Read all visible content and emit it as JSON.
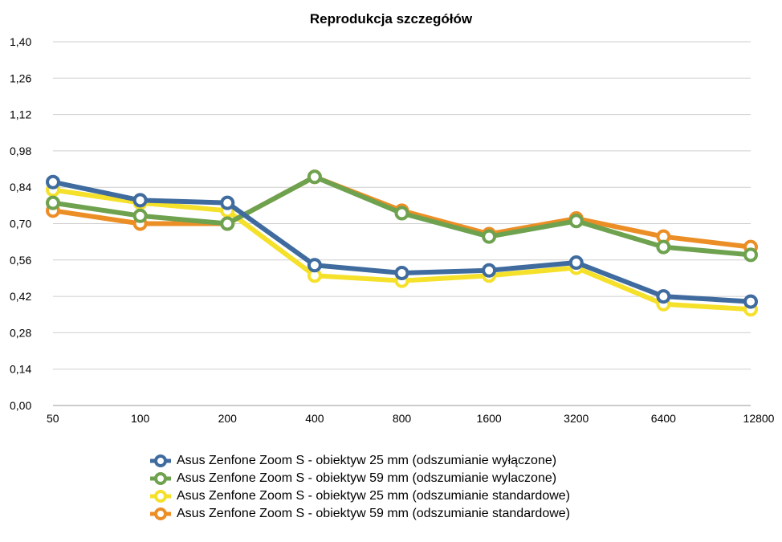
{
  "chart_data": {
    "type": "line",
    "title": "Reprodukcja szczegółów",
    "xlabel": "",
    "ylabel": "",
    "categories": [
      "50",
      "100",
      "200",
      "400",
      "800",
      "1600",
      "3200",
      "6400",
      "12800"
    ],
    "y_ticks": [
      "0,00",
      "0,14",
      "0,28",
      "0,42",
      "0,56",
      "0,70",
      "0,84",
      "0,98",
      "1,12",
      "1,26",
      "1,40"
    ],
    "ylim": [
      0,
      1.4
    ],
    "grid": true,
    "legend_position": "bottom",
    "series": [
      {
        "name": "Asus Zenfone Zoom S - obiektyw 25 mm (odszumianie wyłączone)",
        "color": "#3f6b9e",
        "values": [
          0.86,
          0.79,
          0.78,
          0.54,
          0.51,
          0.52,
          0.55,
          0.42,
          0.4
        ]
      },
      {
        "name": "Asus Zenfone Zoom S - obiektyw 59 mm (odszumianie wylaczone)",
        "color": "#6ea24f",
        "values": [
          0.78,
          0.73,
          0.7,
          0.88,
          0.74,
          0.65,
          0.71,
          0.61,
          0.58
        ]
      },
      {
        "name": "Asus Zenfone Zoom S - obiektyw 25 mm (odszumianie standardowe)",
        "color": "#f5e02a",
        "values": [
          0.83,
          0.78,
          0.75,
          0.5,
          0.48,
          0.5,
          0.53,
          0.39,
          0.37
        ]
      },
      {
        "name": "Asus Zenfone Zoom S - obiektyw 59 mm (odszumianie standardowe)",
        "color": "#ec8e26",
        "values": [
          0.75,
          0.7,
          0.7,
          0.88,
          0.75,
          0.66,
          0.72,
          0.65,
          0.61
        ]
      }
    ],
    "draw_order": [
      2,
      3,
      1,
      0
    ]
  }
}
